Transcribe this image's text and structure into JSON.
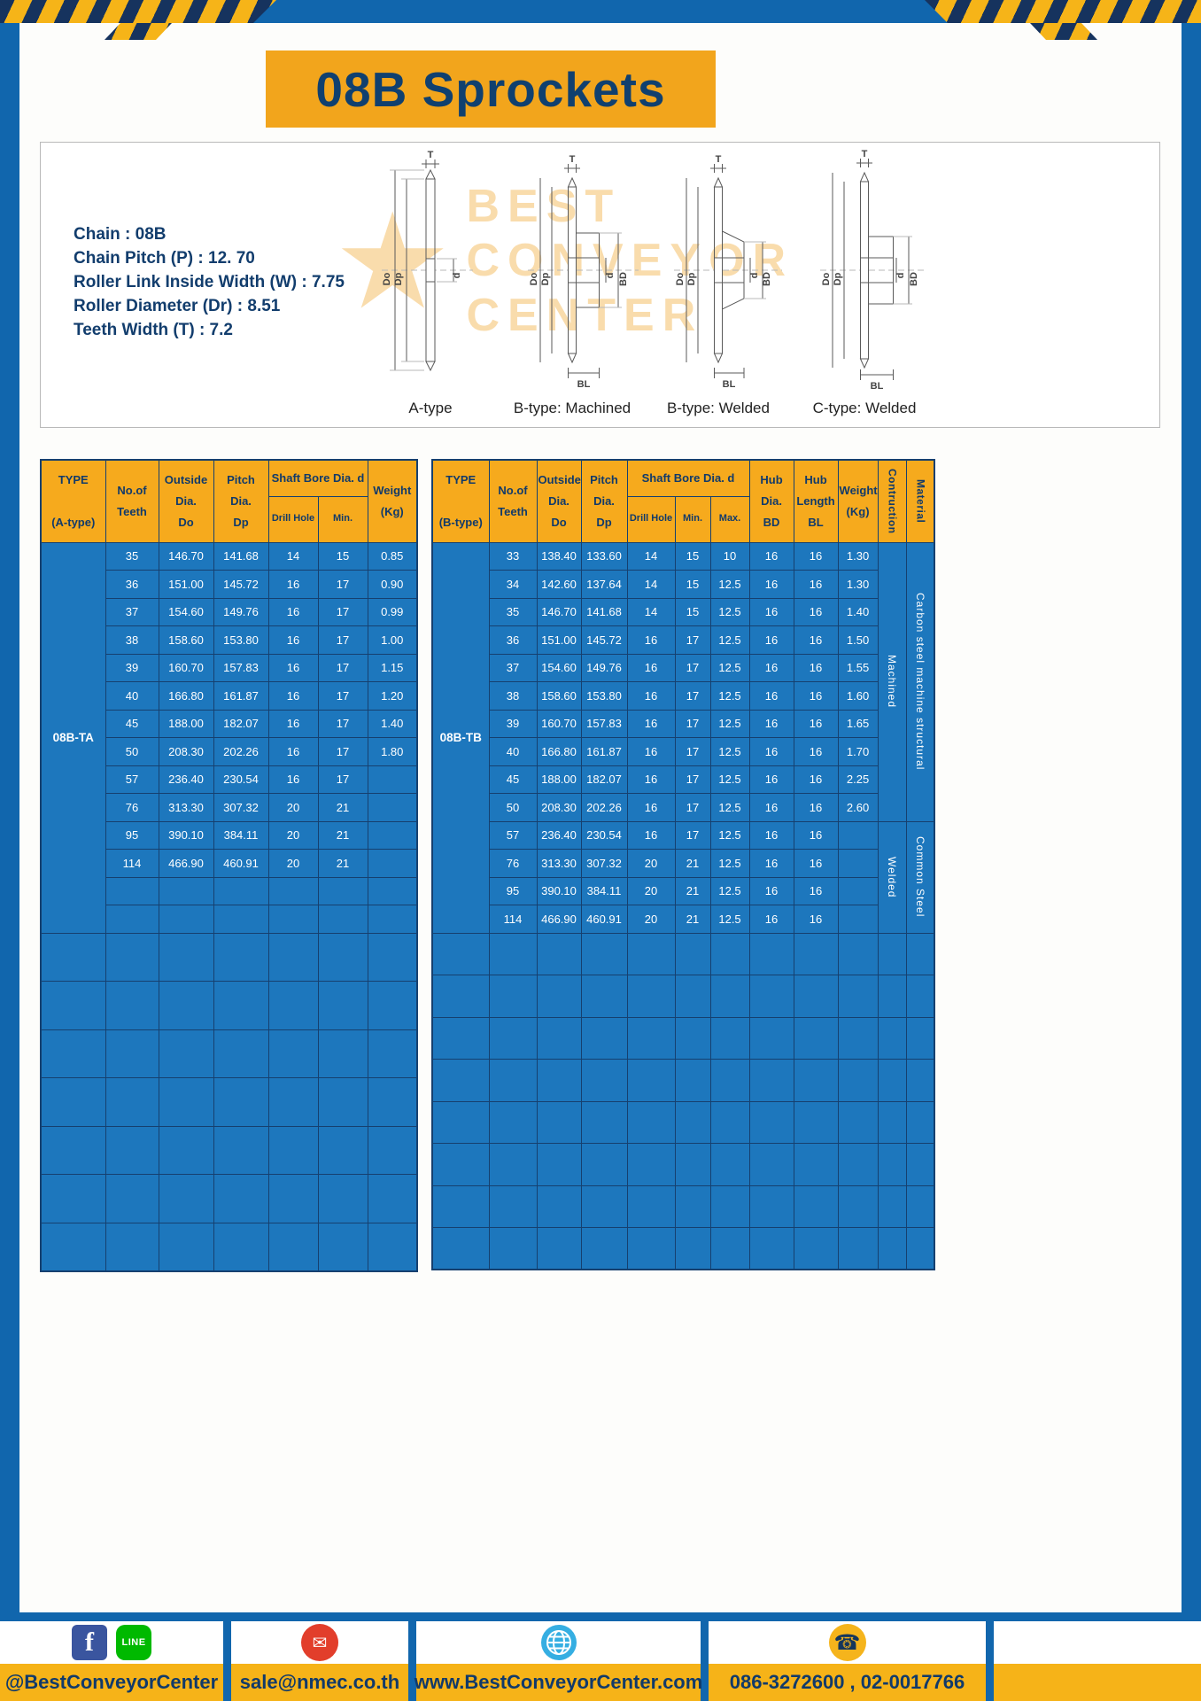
{
  "title": "08B Sprockets",
  "colors": {
    "frame_blue": "#1166ad",
    "gold": "#f2a51c",
    "table_blue": "#1d77bd",
    "navy": "#113a6a",
    "footer_yellow": "#f6b318"
  },
  "specs": {
    "lines": [
      "Chain : 08B",
      "Chain Pitch (P) : 12. 70",
      "Roller Link Inside Width (W) : 7.75",
      "Roller Diameter (Dr) : 8.51",
      "Teeth Width (T) : 7.2"
    ]
  },
  "diagram": {
    "labels": [
      "A-type",
      "B-type: Machined",
      "B-type: Welded",
      "C-type: Welded"
    ],
    "dims": {
      "t": "T",
      "Do": "Do",
      "Dp": "Dp",
      "d": "d",
      "BD": "BD",
      "BL": "BL"
    },
    "watermark": [
      "BEST",
      "CONVEYOR",
      "CENTER"
    ]
  },
  "icons": {
    "facebook": "f",
    "line": "LINE",
    "mail": "✉",
    "phone": "☎",
    "star": "★"
  },
  "tables": {
    "a": {
      "group_label": "08B-TA",
      "headers": {
        "type": "TYPE\n\n(A-type)",
        "teeth": "No.of\nTeeth",
        "outside": "Outside\nDia.\nDo",
        "pitch": "Pitch Dia.\nDp",
        "shaft": "Shaft Bore Dia. d",
        "drill": "Drill Hole",
        "min": "Min.",
        "weight": "Weight\n(Kg)"
      },
      "rows": [
        [
          "35",
          "146.70",
          "141.68",
          "14",
          "15",
          "0.85"
        ],
        [
          "36",
          "151.00",
          "145.72",
          "16",
          "17",
          "0.90"
        ],
        [
          "37",
          "154.60",
          "149.76",
          "16",
          "17",
          "0.99"
        ],
        [
          "38",
          "158.60",
          "153.80",
          "16",
          "17",
          "1.00"
        ],
        [
          "39",
          "160.70",
          "157.83",
          "16",
          "17",
          "1.15"
        ],
        [
          "40",
          "166.80",
          "161.87",
          "16",
          "17",
          "1.20"
        ],
        [
          "45",
          "188.00",
          "182.07",
          "16",
          "17",
          "1.40"
        ],
        [
          "50",
          "208.30",
          "202.26",
          "16",
          "17",
          "1.80"
        ],
        [
          "57",
          "236.40",
          "230.54",
          "16",
          "17",
          ""
        ],
        [
          "76",
          "313.30",
          "307.32",
          "20",
          "21",
          ""
        ],
        [
          "95",
          "390.10",
          "384.11",
          "20",
          "21",
          ""
        ],
        [
          "114",
          "466.90",
          "460.91",
          "20",
          "21",
          ""
        ]
      ],
      "empty_group_rows": 2,
      "empty_tall_rows": 7
    },
    "b": {
      "group_label": "08B-TB",
      "headers": {
        "type": "TYPE\n\n(B-type)",
        "teeth": "No.of\nTeeth",
        "outside": "Outside\nDia.\nDo",
        "pitch": "Pitch Dia.\nDp",
        "shaft": "Shaft Bore Dia. d",
        "drill": "Drill Hole",
        "min": "Min.",
        "max": "Max.",
        "hub_dia": "Hub Dia.\nBD",
        "hub_len": "Hub\nLength\nBL",
        "weight": "Weight\n(Kg)",
        "construction": "Contruction",
        "material": "Material"
      },
      "rows": [
        [
          "33",
          "138.40",
          "133.60",
          "14",
          "15",
          "10",
          "16",
          "16",
          "1.30"
        ],
        [
          "34",
          "142.60",
          "137.64",
          "14",
          "15",
          "12.5",
          "16",
          "16",
          "1.30"
        ],
        [
          "35",
          "146.70",
          "141.68",
          "14",
          "15",
          "12.5",
          "16",
          "16",
          "1.40"
        ],
        [
          "36",
          "151.00",
          "145.72",
          "16",
          "17",
          "12.5",
          "16",
          "16",
          "1.50"
        ],
        [
          "37",
          "154.60",
          "149.76",
          "16",
          "17",
          "12.5",
          "16",
          "16",
          "1.55"
        ],
        [
          "38",
          "158.60",
          "153.80",
          "16",
          "17",
          "12.5",
          "16",
          "16",
          "1.60"
        ],
        [
          "39",
          "160.70",
          "157.83",
          "16",
          "17",
          "12.5",
          "16",
          "16",
          "1.65"
        ],
        [
          "40",
          "166.80",
          "161.87",
          "16",
          "17",
          "12.5",
          "16",
          "16",
          "1.70"
        ],
        [
          "45",
          "188.00",
          "182.07",
          "16",
          "17",
          "12.5",
          "16",
          "16",
          "2.25"
        ],
        [
          "50",
          "208.30",
          "202.26",
          "16",
          "17",
          "12.5",
          "16",
          "16",
          "2.60"
        ],
        [
          "57",
          "236.40",
          "230.54",
          "16",
          "17",
          "12.5",
          "16",
          "16",
          ""
        ],
        [
          "76",
          "313.30",
          "307.32",
          "20",
          "21",
          "12.5",
          "16",
          "16",
          ""
        ],
        [
          "95",
          "390.10",
          "384.11",
          "20",
          "21",
          "12.5",
          "16",
          "16",
          ""
        ],
        [
          "114",
          "466.90",
          "460.91",
          "20",
          "21",
          "12.5",
          "16",
          "16",
          ""
        ]
      ],
      "construction": [
        {
          "label": "Machined",
          "rows": 10
        },
        {
          "label": "Welded",
          "rows": 4
        }
      ],
      "material": [
        {
          "label": "Carbon steel  machine structural",
          "rows": 10
        },
        {
          "label": "Common  Steel",
          "rows": 4
        }
      ],
      "empty_tall_rows": 8
    }
  },
  "footer": {
    "sections": [
      {
        "text": "@BestConveyorCenter"
      },
      {
        "text": "sale@nmec.co.th"
      },
      {
        "text": "www.BestConveyorCenter.com"
      },
      {
        "text": "086-3272600 , 02-0017766"
      },
      {
        "text": ""
      }
    ]
  }
}
